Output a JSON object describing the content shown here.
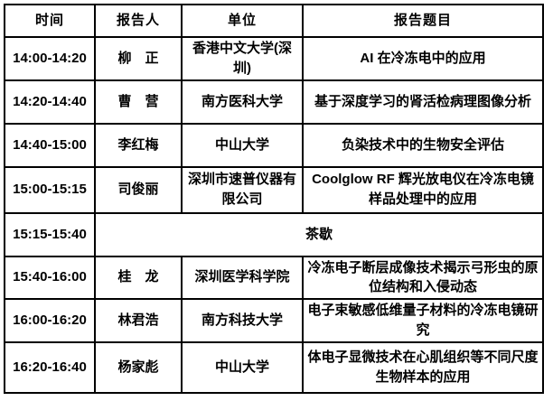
{
  "colors": {
    "background": "#ffffff",
    "border": "#000000",
    "text": "#000000"
  },
  "schedule": {
    "columns": {
      "time": "时间",
      "speaker": "报告人",
      "org": "单位",
      "title": "报告题目"
    },
    "rows": [
      {
        "time": "14:00-14:20",
        "speaker": "柳　正",
        "org": "香港中文大学(深圳)",
        "title": "AI 在冷冻电中的应用"
      },
      {
        "time": "14:20-14:40",
        "speaker": "曹　营",
        "org": "南方医科大学",
        "title": "基于深度学习的肾活检病理图像分析"
      },
      {
        "time": "14:40-15:00",
        "speaker": "李红梅",
        "org": "中山大学",
        "title": "负染技术中的生物安全评估"
      },
      {
        "time": "15:00-15:15",
        "speaker": "司俊丽",
        "org": "深圳市速普仪器有限公司",
        "title": "Coolglow RF 辉光放电仪在冷冻电镜样品处理中的应用"
      },
      {
        "time": "15:15-15:40",
        "break_label": "茶歇"
      },
      {
        "time": "15:40-16:00",
        "speaker": "桂　龙",
        "org": "深圳医学科学院",
        "title": "冷冻电子断层成像技术揭示弓形虫的原位结构和入侵动态"
      },
      {
        "time": "16:00-16:20",
        "speaker": "林君浩",
        "org": "南方科技大学",
        "title": "电子束敏感低维量子材料的冷冻电镜研究"
      },
      {
        "time": "16:20-16:40",
        "speaker": "杨家彪",
        "org": "中山大学",
        "title": "体电子显微技术在心肌组织等不同尺度生物样本的应用"
      }
    ]
  }
}
